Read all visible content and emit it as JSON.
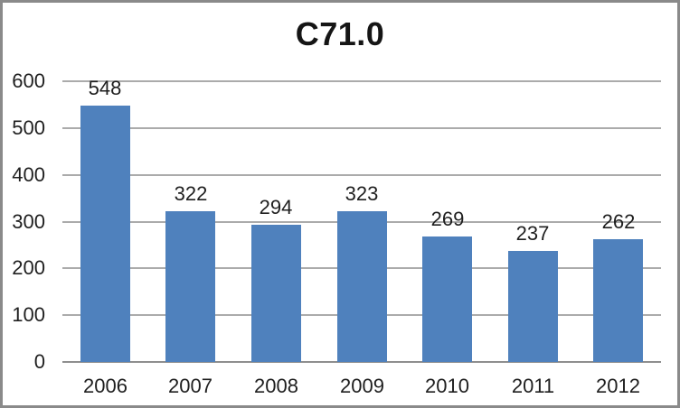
{
  "chart_data": {
    "type": "bar",
    "title": "C71.0",
    "categories": [
      "2006",
      "2007",
      "2008",
      "2009",
      "2010",
      "2011",
      "2012"
    ],
    "values": [
      548,
      322,
      294,
      323,
      269,
      237,
      262
    ],
    "xlabel": "",
    "ylabel": "",
    "ylim": [
      0,
      600
    ],
    "yticks": [
      0,
      100,
      200,
      300,
      400,
      500,
      600
    ],
    "grid": true,
    "legend": "none",
    "colors": {
      "bar": "#4f81bd",
      "gridline": "#ababab",
      "axis_line": "#8e8e8e",
      "text": "#1f1f1f",
      "title_text": "#151515",
      "frame_border": "#8a8a8a",
      "background": "#ffffff"
    }
  }
}
